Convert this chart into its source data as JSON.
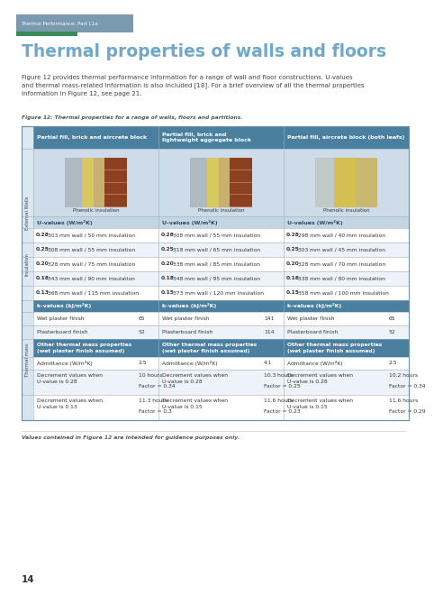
{
  "page_bg": "#ffffff",
  "tab_bg": "#7a9ab0",
  "tab_text": "Thermal Performance: Part L1a",
  "tab_green": "#3a8a5a",
  "title": "Thermal properties of walls and floors",
  "title_color": "#6fa8c8",
  "body_text": "Figure 12 provides thermal performance information for a range of wall and floor constructions. U-values\nand thermal mass-related information is also included [18]. For a brief overview of all the thermal properties\ninformation in Figure 12, see page 21.",
  "body_color": "#444444",
  "caption": "Figure 12: Thermal properties for a range of walls, floors and partitions.",
  "caption_color": "#555555",
  "header_bg": "#4a7fa0",
  "header_text_color": "#ffffff",
  "col_headers": [
    "Partial fill, brick and aircrete block",
    "Partial fill, brick and\nlightweight aggregate block",
    "Partial fill, aircrete block (both leafs)"
  ],
  "image_bg": "#cddce8",
  "image_label": "Phenolic insulation",
  "section_label_insulation": "Insulation",
  "section_label_thermal": "Thermal mass",
  "section_label_external": "External Walls",
  "sidebar_bg": "#dce8f0",
  "row_bg_light": "#edf3f8",
  "row_bg_white": "#ffffff",
  "u_header_text": "U-values (W/m²K)",
  "u_header_bg": "#c5d5e2",
  "u_header_text_color": "#2a4a6a",
  "k_header_text": "k-values (kJ/m²K)",
  "k_header_bg": "#4a7fa0",
  "other_header_text": "Other thermal mass properties\n(wet plaster finish assumed)",
  "other_header_bg": "#4a7fa0",
  "border_color": "#9ab0c0",
  "col1_u_values": [
    [
      "0.28",
      "303 mm wall / 50 mm insulation"
    ],
    [
      "0.25",
      "308 mm wall / 55 mm insulation"
    ],
    [
      "0.20",
      "328 mm wall / 75 mm insulation"
    ],
    [
      "0.18",
      "343 mm wall / 90 mm insulation"
    ],
    [
      "0.13",
      "368 mm wall / 115 mm insulation"
    ]
  ],
  "col2_u_values": [
    [
      "0.28",
      "308 mm wall / 55 mm insulation"
    ],
    [
      "0.25",
      "318 mm wall / 65 mm insulation"
    ],
    [
      "0.20",
      "338 mm wall / 85 mm insulation"
    ],
    [
      "0.18",
      "348 mm wall / 95 mm insulation"
    ],
    [
      "0.15",
      "373 mm wall / 120 mm insulation"
    ]
  ],
  "col3_u_values": [
    [
      "0.28",
      "298 mm wall / 40 mm insulation"
    ],
    [
      "0.25",
      "303 mm wall / 45 mm insulation"
    ],
    [
      "0.20",
      "328 mm wall / 70 mm insulation"
    ],
    [
      "0.18",
      "338 mm wall / 80 mm insulation"
    ],
    [
      "0.15",
      "358 mm wall / 100 mm insulation"
    ]
  ],
  "col1_k": [
    [
      "Wet plaster finish",
      "65"
    ],
    [
      "Plasterboard finish",
      "52"
    ]
  ],
  "col2_k": [
    [
      "Wet plaster finish",
      "141"
    ],
    [
      "Plasterboard finish",
      "114"
    ]
  ],
  "col3_k": [
    [
      "Wet plaster finish",
      "65"
    ],
    [
      "Plasterboard finish",
      "52"
    ]
  ],
  "col1_other": [
    [
      "Admittance (W/m²K)",
      "2.5"
    ],
    [
      "Decrement values when\nU-value is 0.28",
      "10 hours",
      "Factor = 0.34"
    ],
    [
      "Decrement values when\nU-value is 0.13",
      "11.3 hours",
      "Factor = 0.3"
    ]
  ],
  "col2_other": [
    [
      "Admittance (W/m²K)",
      "4.1"
    ],
    [
      "Decrement values when\nU-value is 0.28",
      "10.3 hours",
      "Factor = 0.25"
    ],
    [
      "Decrement values when\nU-value is 0.15",
      "11.6 hours",
      "Factor = 0.23"
    ]
  ],
  "col3_other": [
    [
      "Admittance (W/m²K)",
      "2.5"
    ],
    [
      "Decrement values when\nU-value is 0.28",
      "10.2 hours",
      "Factor = 0.34"
    ],
    [
      "Decrement values when\nU-value is 0.15",
      "11.6 hours",
      "Factor = 0.29"
    ]
  ],
  "footer_text": "Values contained in Figure 12 are intended for guidance purposes only.",
  "page_num": "14"
}
